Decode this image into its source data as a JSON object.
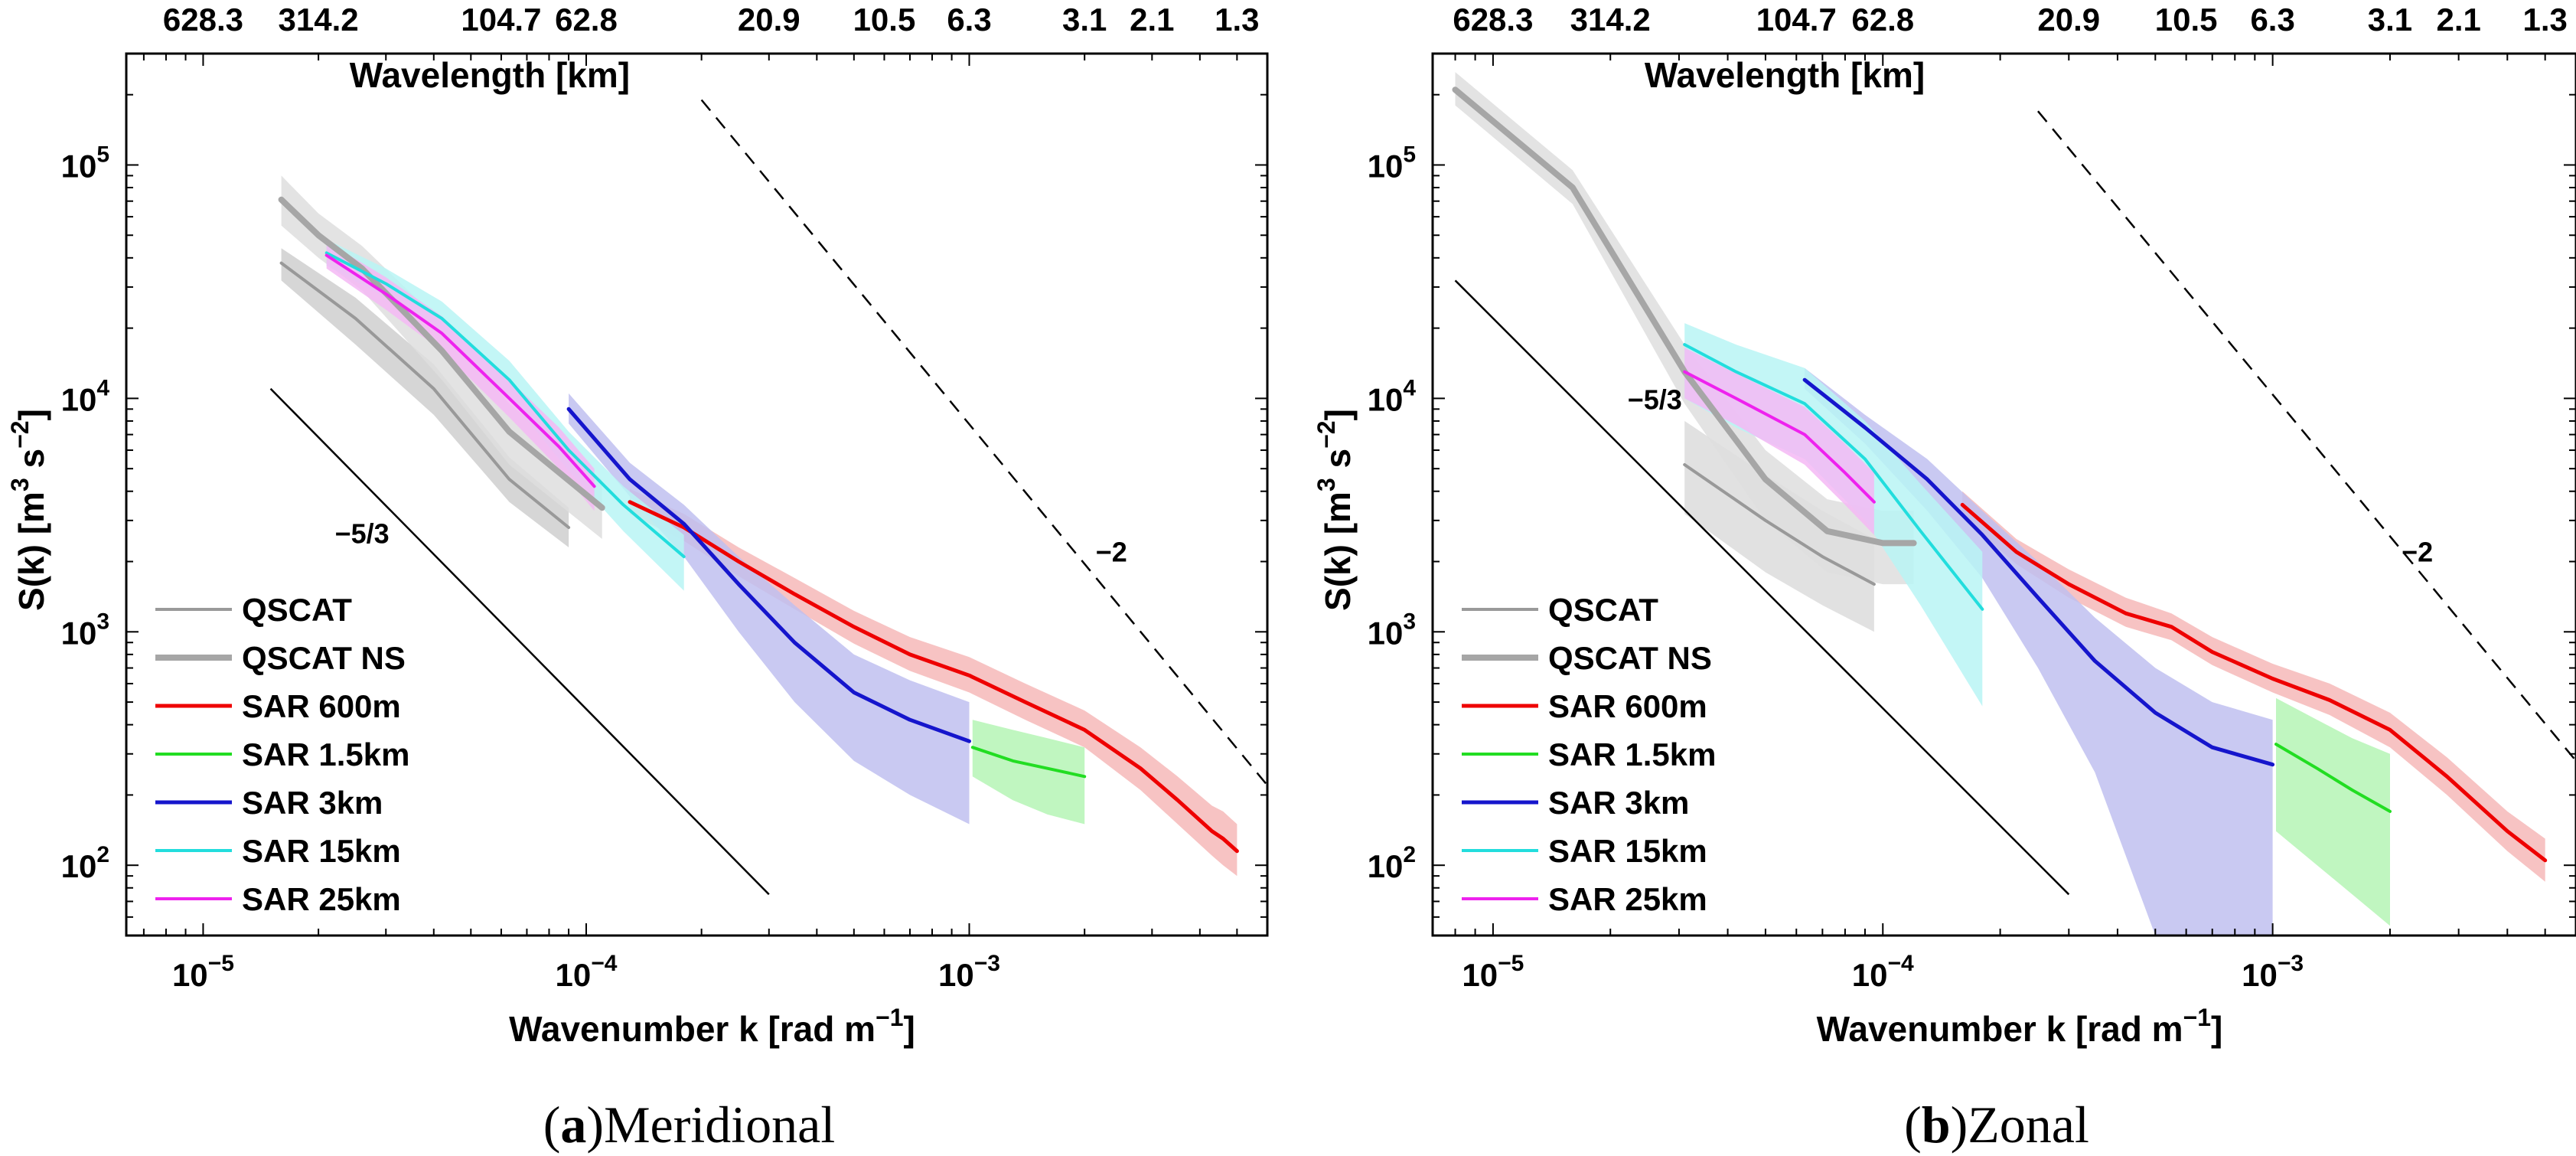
{
  "figure": {
    "panels": [
      {
        "letter": "a",
        "title": "Meridional"
      },
      {
        "letter": "b",
        "title": "Zonal"
      }
    ]
  },
  "chart_data": [
    {
      "type": "line",
      "title": "(a)Meridional",
      "caption_letter": "a",
      "caption_text": "Meridional",
      "xlabel": "Wavenumber k [rad m",
      "xlabel_sup": "−1",
      "xlabel_end": "]",
      "ylabel": "S(k) [m",
      "ylabel_sup1": "3",
      "ylabel_mid": " s",
      "ylabel_sup2": "−2",
      "ylabel_end": "]",
      "top_axis_label": "Wavelength [km]",
      "xscale": "log",
      "yscale": "log",
      "xlim": [
        6.3e-06,
        0.006
      ],
      "ylim": [
        50,
        300000.0
      ],
      "xticks": [
        1e-05,
        0.0001,
        0.001
      ],
      "xtick_base": "10",
      "xtick_exps": [
        "−5",
        "−4",
        "−3"
      ],
      "yticks": [
        100,
        1000,
        10000,
        100000
      ],
      "ytick_base": "10",
      "ytick_exps": [
        "2",
        "3",
        "4",
        "5"
      ],
      "top_ticks": [
        {
          "k": 1e-05,
          "label": "628.3"
        },
        {
          "k": 2e-05,
          "label": "314.2"
        },
        {
          "k": 6e-05,
          "label": "104.7"
        },
        {
          "k": 0.0001,
          "label": "62.8"
        },
        {
          "k": 0.0003,
          "label": "20.9"
        },
        {
          "k": 0.0006,
          "label": "10.5"
        },
        {
          "k": 0.001,
          "label": "6.3"
        },
        {
          "k": 0.002,
          "label": "3.1"
        },
        {
          "k": 0.003,
          "label": "2.1"
        },
        {
          "k": 0.005,
          "label": "1.3"
        }
      ],
      "grid": false,
      "legend_position": "lower-left",
      "slope_labels": [
        {
          "text": "−5/3",
          "x": 2.6e-05,
          "y": 2400
        },
        {
          "text": "−2",
          "x": 0.00235,
          "y": 2000
        }
      ],
      "series": [
        {
          "name": "QSCAT",
          "color": "#999999",
          "width": 4,
          "band": "#cfcfcf",
          "x": [
            1.6e-05,
            2.5e-05,
            4e-05,
            6.3e-05,
            9e-05
          ],
          "y": [
            38000,
            22000,
            11000,
            4500,
            2800
          ],
          "lo": [
            32000,
            17000,
            8500,
            3600,
            2300
          ],
          "hi": [
            44000,
            27000,
            14000,
            5600,
            3400
          ]
        },
        {
          "name": "QSCAT NS",
          "color": "#a6a6a6",
          "width": 8,
          "band": "#dedede",
          "x": [
            1.6e-05,
            2e-05,
            2.6e-05,
            4.2e-05,
            6.3e-05,
            0.00011
          ],
          "y": [
            71000,
            50000,
            36000,
            16000,
            7200,
            3400
          ],
          "lo": [
            55000,
            40000,
            29000,
            12000,
            5200,
            2500
          ],
          "hi": [
            90000,
            62000,
            45000,
            21000,
            9500,
            4500
          ]
        },
        {
          "name": "SAR 600m",
          "color": "#ee0000",
          "width": 5,
          "band": "#f6b9b9",
          "x": [
            0.00013,
            0.00018,
            0.00025,
            0.00035,
            0.0005,
            0.0007,
            0.001,
            0.0014,
            0.002,
            0.0028,
            0.0035,
            0.0043,
            0.0046,
            0.005
          ],
          "y": [
            3600,
            2800,
            2000,
            1450,
            1050,
            800,
            650,
            500,
            380,
            260,
            190,
            140,
            130,
            115
          ],
          "lo": [
            3200,
            2450,
            1730,
            1250,
            890,
            680,
            550,
            420,
            320,
            210,
            150,
            110,
            100,
            90
          ],
          "hi": [
            4100,
            3200,
            2300,
            1700,
            1230,
            950,
            780,
            600,
            460,
            320,
            240,
            180,
            170,
            150
          ]
        },
        {
          "name": "SAR 1.5km",
          "color": "#22dd22",
          "width": 4,
          "band": "#b5f5b5",
          "x": [
            0.00102,
            0.0013,
            0.0016,
            0.002
          ],
          "y": [
            320,
            280,
            260,
            240
          ],
          "lo": [
            240,
            190,
            165,
            150
          ],
          "hi": [
            420,
            380,
            350,
            320
          ]
        },
        {
          "name": "SAR 3km",
          "color": "#1515cc",
          "width": 5,
          "band": "#c0c0f0",
          "x": [
            9e-05,
            0.00013,
            0.00018,
            0.00025,
            0.00035,
            0.0005,
            0.0007,
            0.001
          ],
          "y": [
            9000,
            4500,
            2900,
            1600,
            900,
            550,
            420,
            340
          ],
          "lo": [
            7800,
            3800,
            2100,
            1000,
            500,
            280,
            200,
            150
          ],
          "hi": [
            10500,
            5300,
            3500,
            2100,
            1300,
            800,
            620,
            500
          ]
        },
        {
          "name": "SAR 15km",
          "color": "#22dddd",
          "width": 4,
          "band": "#b8f4f4",
          "x": [
            2.1e-05,
            3e-05,
            4.2e-05,
            6.3e-05,
            9e-05,
            0.000125,
            0.00018
          ],
          "y": [
            42000,
            31000,
            22000,
            12000,
            6000,
            3500,
            2100
          ],
          "lo": [
            37000,
            27000,
            19000,
            10000,
            4900,
            2700,
            1500
          ],
          "hi": [
            48000,
            36000,
            26000,
            14500,
            7200,
            4200,
            2600
          ]
        },
        {
          "name": "SAR 25km",
          "color": "#ee22ee",
          "width": 4,
          "band": "#f5b8f5",
          "x": [
            2.1e-05,
            3e-05,
            4.2e-05,
            6.3e-05,
            8.5e-05,
            0.000105
          ],
          "y": [
            41000,
            28000,
            19000,
            10000,
            6200,
            4200
          ],
          "lo": [
            36000,
            24000,
            16000,
            8300,
            5000,
            3300
          ],
          "hi": [
            47000,
            33000,
            22500,
            12000,
            7500,
            5000
          ]
        }
      ],
      "reference_lines": [
        {
          "slope": "−5/3",
          "style": "solid",
          "x": [
            1.5e-05,
            0.0003
          ],
          "y": [
            11000,
            75
          ]
        },
        {
          "slope": "−2",
          "style": "dashed",
          "x": [
            0.0002,
            0.006
          ],
          "y": [
            190000,
            220
          ]
        }
      ]
    },
    {
      "type": "line",
      "title": "(b)Zonal",
      "caption_letter": "b",
      "caption_text": "Zonal",
      "xlabel": "Wavenumber k [rad m",
      "xlabel_sup": "−1",
      "xlabel_end": "]",
      "ylabel": "S(k) [m",
      "ylabel_sup1": "3",
      "ylabel_mid": " s",
      "ylabel_sup2": "−2",
      "ylabel_end": "]",
      "top_axis_label": "Wavelength [km]",
      "xscale": "log",
      "yscale": "log",
      "xlim": [
        7e-06,
        0.006
      ],
      "ylim": [
        50,
        300000.0
      ],
      "xticks": [
        1e-05,
        0.0001,
        0.001
      ],
      "xtick_base": "10",
      "xtick_exps": [
        "−5",
        "−4",
        "−3"
      ],
      "yticks": [
        100,
        1000,
        10000,
        100000
      ],
      "ytick_base": "10",
      "ytick_exps": [
        "2",
        "3",
        "4",
        "5"
      ],
      "top_ticks": [
        {
          "k": 1e-05,
          "label": "628.3"
        },
        {
          "k": 2e-05,
          "label": "314.2"
        },
        {
          "k": 6e-05,
          "label": "104.7"
        },
        {
          "k": 0.0001,
          "label": "62.8"
        },
        {
          "k": 0.0003,
          "label": "20.9"
        },
        {
          "k": 0.0006,
          "label": "10.5"
        },
        {
          "k": 0.001,
          "label": "6.3"
        },
        {
          "k": 0.002,
          "label": "3.1"
        },
        {
          "k": 0.003,
          "label": "2.1"
        },
        {
          "k": 0.005,
          "label": "1.3"
        }
      ],
      "grid": false,
      "legend_position": "lower-left",
      "slope_labels": [
        {
          "text": "−5/3",
          "x": 2.6e-05,
          "y": 9000
        },
        {
          "text": "−2",
          "x": 0.00235,
          "y": 2000
        }
      ],
      "series": [
        {
          "name": "QSCAT",
          "color": "#999999",
          "width": 4,
          "band": "#dcdcdc",
          "x": [
            3.1e-05,
            5e-05,
            7e-05,
            9.5e-05
          ],
          "y": [
            5200,
            3000,
            2100,
            1600
          ],
          "lo": [
            3200,
            1800,
            1300,
            1000
          ],
          "hi": [
            8000,
            4700,
            3300,
            2500
          ]
        },
        {
          "name": "QSCAT NS",
          "color": "#a6a6a6",
          "width": 8,
          "band": "#dedede",
          "x": [
            8e-06,
            1.6e-05,
            3.1e-05,
            5e-05,
            7.2e-05,
            0.0001,
            0.00012
          ],
          "y": [
            210000,
            80000,
            13000,
            4500,
            2700,
            2400,
            2400
          ],
          "lo": [
            180000,
            68000,
            9500,
            3000,
            1800,
            1600,
            1600
          ],
          "hi": [
            250000,
            95000,
            17000,
            6000,
            3700,
            3300,
            3300
          ]
        },
        {
          "name": "SAR 600m",
          "color": "#ee0000",
          "width": 5,
          "band": "#f6b9b9",
          "x": [
            0.00016,
            0.00022,
            0.0003,
            0.00042,
            0.00055,
            0.0007,
            0.001,
            0.0014,
            0.002,
            0.0028,
            0.004,
            0.005
          ],
          "y": [
            3500,
            2200,
            1600,
            1200,
            1050,
            820,
            630,
            510,
            380,
            240,
            140,
            105
          ],
          "lo": [
            3100,
            1950,
            1400,
            1050,
            920,
            720,
            550,
            440,
            320,
            200,
            115,
            85
          ],
          "hi": [
            4000,
            2500,
            1850,
            1400,
            1200,
            950,
            730,
            600,
            450,
            290,
            170,
            130
          ]
        },
        {
          "name": "SAR 1.5km",
          "color": "#22dd22",
          "width": 4,
          "band": "#b5f5b5",
          "x": [
            0.00102,
            0.0013,
            0.0016,
            0.002
          ],
          "y": [
            330,
            260,
            210,
            170
          ],
          "lo": [
            140,
            100,
            75,
            55
          ],
          "hi": [
            520,
            420,
            350,
            300
          ]
        },
        {
          "name": "SAR 3km",
          "color": "#1515cc",
          "width": 5,
          "band": "#c0c0f0",
          "x": [
            6.3e-05,
            9e-05,
            0.00013,
            0.00018,
            0.00025,
            0.00035,
            0.0005,
            0.0007,
            0.001
          ],
          "y": [
            12000,
            7500,
            4500,
            2600,
            1400,
            750,
            450,
            320,
            270
          ],
          "lo": [
            11000,
            6400,
            3300,
            1700,
            700,
            250,
            50,
            50,
            50
          ],
          "hi": [
            13500,
            8500,
            5500,
            3300,
            2000,
            1150,
            700,
            500,
            420
          ]
        },
        {
          "name": "SAR 15km",
          "color": "#22dddd",
          "width": 4,
          "band": "#b8f4f4",
          "x": [
            3.1e-05,
            4.2e-05,
            6.3e-05,
            9e-05,
            0.000125,
            0.00018
          ],
          "y": [
            17000,
            13000,
            9500,
            5500,
            2700,
            1250
          ],
          "lo": [
            10000,
            7500,
            5500,
            3000,
            1300,
            480
          ],
          "hi": [
            21000,
            17000,
            13500,
            8000,
            4300,
            2200
          ]
        },
        {
          "name": "SAR 25km",
          "color": "#ee22ee",
          "width": 4,
          "band": "#f5b8f5",
          "x": [
            3.1e-05,
            4.2e-05,
            6.3e-05,
            8e-05,
            9.5e-05
          ],
          "y": [
            13000,
            10000,
            7000,
            4800,
            3600
          ],
          "lo": [
            10000,
            7700,
            5200,
            3500,
            2600
          ],
          "hi": [
            16500,
            12800,
            9200,
            6400,
            4800
          ]
        }
      ],
      "reference_lines": [
        {
          "slope": "−5/3",
          "style": "solid",
          "x": [
            8e-06,
            0.0003
          ],
          "y": [
            32000,
            75
          ]
        },
        {
          "slope": "−2",
          "style": "dashed",
          "x": [
            0.00025,
            0.006
          ],
          "y": [
            170000,
            280
          ]
        }
      ]
    }
  ]
}
